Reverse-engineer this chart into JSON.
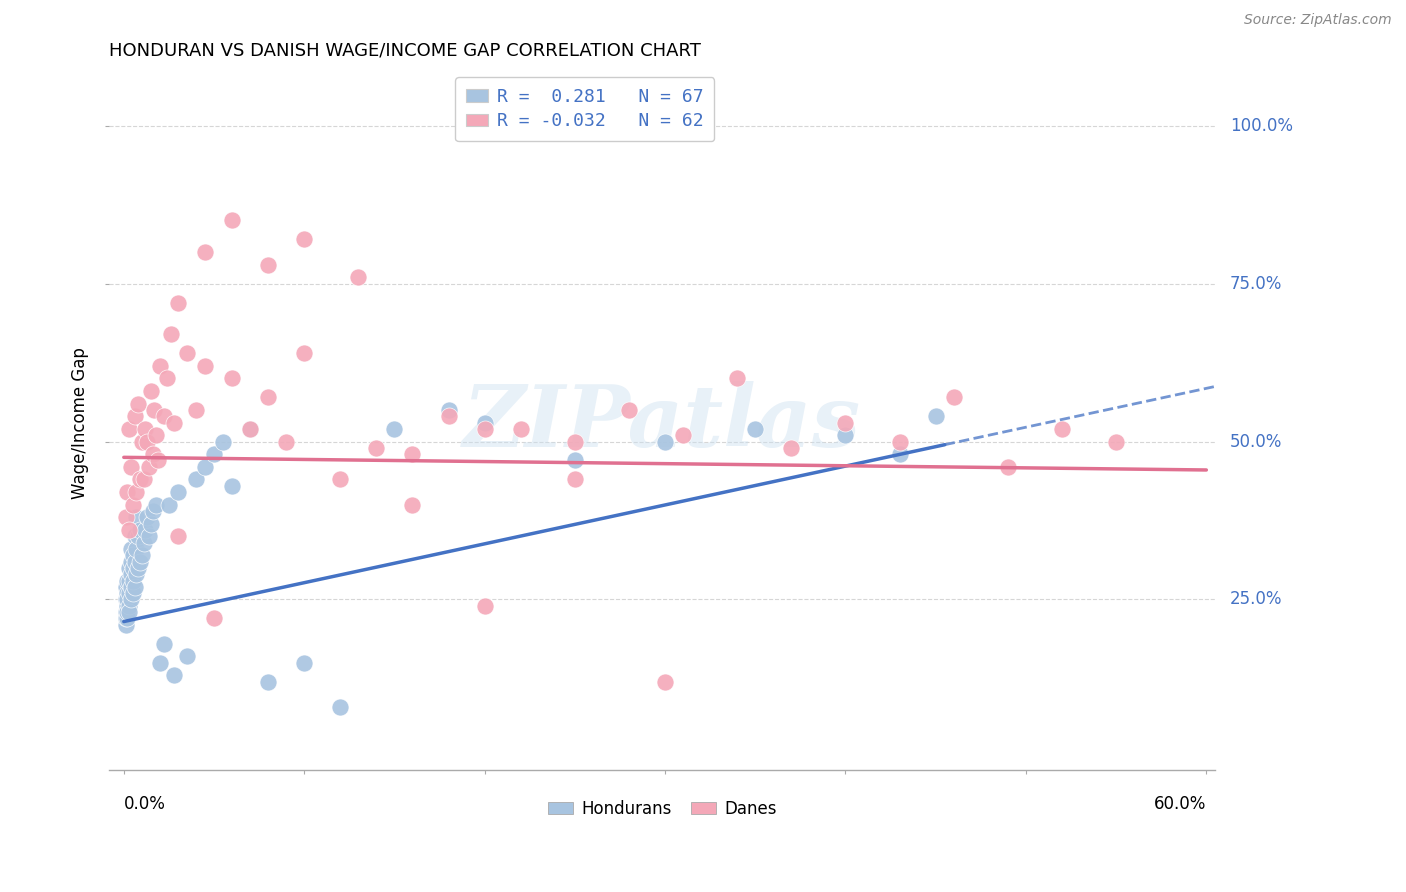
{
  "title": "HONDURAN VS DANISH WAGE/INCOME GAP CORRELATION CHART",
  "source": "Source: ZipAtlas.com",
  "ylabel": "Wage/Income Gap",
  "xlim": [
    0.0,
    0.6
  ],
  "ylim": [
    0.0,
    1.05
  ],
  "honduran_color": "#a8c4e0",
  "dane_color": "#f4a8b8",
  "honduran_R": 0.281,
  "honduran_N": 67,
  "dane_R": -0.032,
  "dane_N": 62,
  "watermark_text": "ZIPatlas",
  "legend_label_1": "Hondurans",
  "legend_label_2": "Danes",
  "blue_line_color": "#4472c4",
  "pink_line_color": "#e07090",
  "blue_line_start_y": 0.215,
  "blue_line_end_x": 0.455,
  "blue_line_end_y": 0.495,
  "pink_line_start_y": 0.475,
  "pink_line_end_x": 0.6,
  "pink_line_end_y": 0.455,
  "honduran_x": [
    0.001,
    0.001,
    0.001,
    0.001,
    0.001,
    0.002,
    0.002,
    0.002,
    0.002,
    0.002,
    0.002,
    0.003,
    0.003,
    0.003,
    0.003,
    0.003,
    0.004,
    0.004,
    0.004,
    0.004,
    0.004,
    0.005,
    0.005,
    0.005,
    0.005,
    0.006,
    0.006,
    0.006,
    0.007,
    0.007,
    0.007,
    0.008,
    0.008,
    0.009,
    0.009,
    0.01,
    0.011,
    0.012,
    0.013,
    0.014,
    0.015,
    0.016,
    0.018,
    0.02,
    0.022,
    0.025,
    0.028,
    0.03,
    0.035,
    0.04,
    0.045,
    0.05,
    0.055,
    0.06,
    0.07,
    0.08,
    0.1,
    0.12,
    0.15,
    0.18,
    0.2,
    0.25,
    0.3,
    0.35,
    0.4,
    0.43,
    0.45
  ],
  "honduran_y": [
    0.21,
    0.23,
    0.25,
    0.27,
    0.22,
    0.22,
    0.24,
    0.26,
    0.28,
    0.23,
    0.25,
    0.24,
    0.26,
    0.28,
    0.3,
    0.23,
    0.27,
    0.29,
    0.31,
    0.25,
    0.33,
    0.26,
    0.28,
    0.3,
    0.32,
    0.27,
    0.31,
    0.35,
    0.29,
    0.33,
    0.38,
    0.3,
    0.35,
    0.31,
    0.36,
    0.32,
    0.34,
    0.36,
    0.38,
    0.35,
    0.37,
    0.39,
    0.4,
    0.15,
    0.18,
    0.4,
    0.13,
    0.42,
    0.16,
    0.44,
    0.46,
    0.48,
    0.5,
    0.43,
    0.52,
    0.12,
    0.15,
    0.08,
    0.52,
    0.55,
    0.53,
    0.47,
    0.5,
    0.52,
    0.51,
    0.48,
    0.54
  ],
  "dane_x": [
    0.001,
    0.002,
    0.003,
    0.003,
    0.004,
    0.005,
    0.006,
    0.007,
    0.008,
    0.009,
    0.01,
    0.011,
    0.012,
    0.013,
    0.014,
    0.015,
    0.016,
    0.017,
    0.018,
    0.019,
    0.02,
    0.022,
    0.024,
    0.026,
    0.028,
    0.03,
    0.035,
    0.04,
    0.045,
    0.05,
    0.06,
    0.07,
    0.08,
    0.09,
    0.1,
    0.12,
    0.14,
    0.16,
    0.18,
    0.2,
    0.22,
    0.25,
    0.28,
    0.31,
    0.34,
    0.37,
    0.4,
    0.43,
    0.46,
    0.49,
    0.52,
    0.55,
    0.03,
    0.045,
    0.06,
    0.08,
    0.1,
    0.13,
    0.16,
    0.2,
    0.25,
    0.3
  ],
  "dane_y": [
    0.38,
    0.42,
    0.36,
    0.52,
    0.46,
    0.4,
    0.54,
    0.42,
    0.56,
    0.44,
    0.5,
    0.44,
    0.52,
    0.5,
    0.46,
    0.58,
    0.48,
    0.55,
    0.51,
    0.47,
    0.62,
    0.54,
    0.6,
    0.67,
    0.53,
    0.72,
    0.64,
    0.55,
    0.62,
    0.22,
    0.6,
    0.52,
    0.57,
    0.5,
    0.64,
    0.44,
    0.49,
    0.4,
    0.54,
    0.24,
    0.52,
    0.5,
    0.55,
    0.51,
    0.6,
    0.49,
    0.53,
    0.5,
    0.57,
    0.46,
    0.52,
    0.5,
    0.35,
    0.8,
    0.85,
    0.78,
    0.82,
    0.76,
    0.48,
    0.52,
    0.44,
    0.12
  ]
}
